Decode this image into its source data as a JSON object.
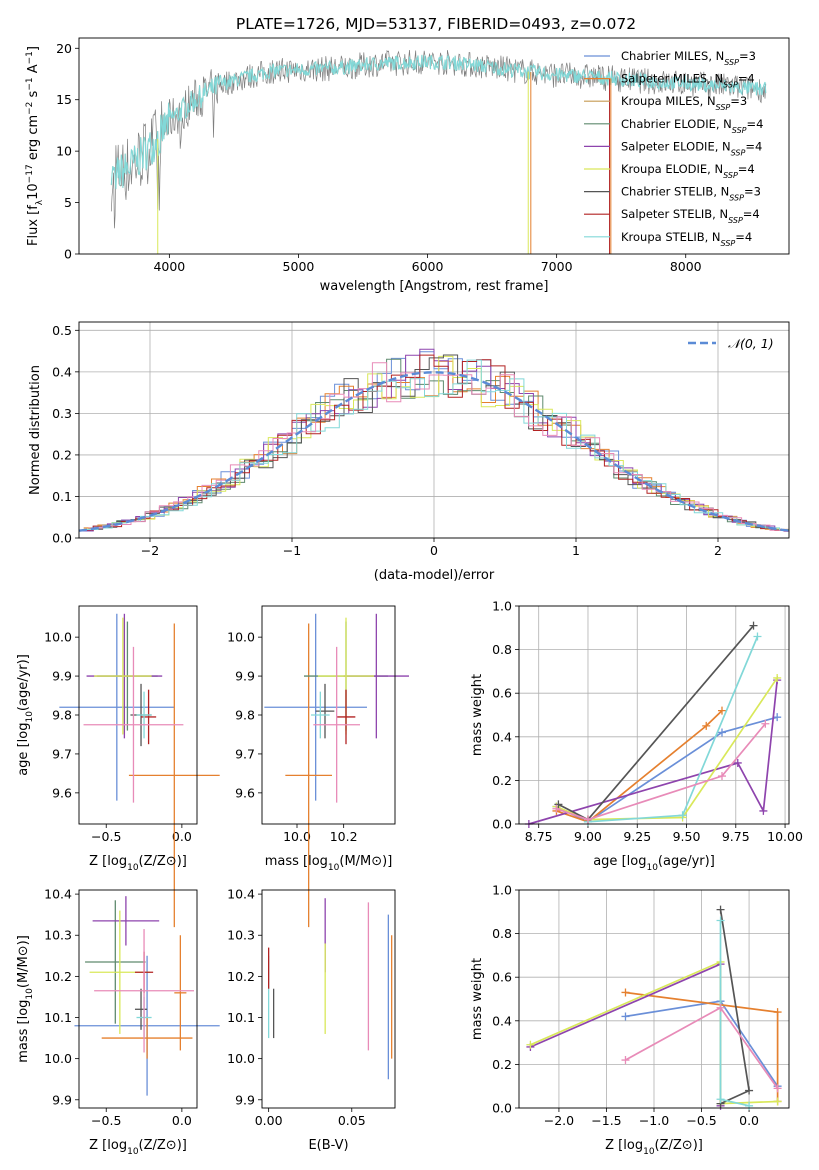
{
  "figure": {
    "title": "PLATE=1726, MJD=53137, FIBERID=0493, z=0.072"
  },
  "series_colors": {
    "chabrier_miles": "#6a8fd8",
    "salpeter_miles": "#e5802f",
    "kroupa_miles": "#c59a52",
    "chabrier_elodie": "#5f8a6e",
    "salpeter_elodie": "#8e44ad",
    "kroupa_elodie": "#d9e85a",
    "chabrier_stelib": "#555555",
    "salpeter_stelib": "#b22222",
    "kroupa_stelib": "#82d8d8",
    "pink": "#e88bb8"
  },
  "chart_data": [
    {
      "type": "line",
      "id": "spectrum",
      "xlabel": "wavelength [Angstrom, rest frame]",
      "ylabel": "Flux [f_λ10^-17 erg cm^-2 s^-1 A^-1]",
      "xlim": [
        3300,
        8800
      ],
      "ylim": [
        0,
        21
      ],
      "xticks": [
        4000,
        5000,
        6000,
        7000,
        8000
      ],
      "yticks": [
        0,
        5,
        10,
        15,
        20
      ],
      "legend": "top-right",
      "legend_entries": [
        {
          "label": "Chabrier MILES, N_SSP=3",
          "color_key": "chabrier_miles"
        },
        {
          "label": "Salpeter MILES, N_SSP=4",
          "color_key": "salpeter_miles"
        },
        {
          "label": "Kroupa MILES, N_SSP=3",
          "color_key": "kroupa_miles"
        },
        {
          "label": "Chabrier ELODIE, N_SSP=4",
          "color_key": "chabrier_elodie"
        },
        {
          "label": "Salpeter ELODIE, N_SSP=4",
          "color_key": "salpeter_elodie"
        },
        {
          "label": "Kroupa ELODIE, N_SSP=4",
          "color_key": "kroupa_elodie"
        },
        {
          "label": "Chabrier STELIB, N_SSP=3",
          "color_key": "chabrier_stelib"
        },
        {
          "label": "Salpeter STELIB, N_SSP=4",
          "color_key": "salpeter_stelib"
        },
        {
          "label": "Kroupa STELIB, N_SSP=4",
          "color_key": "kroupa_stelib"
        }
      ],
      "continuum": {
        "x": [
          3550,
          3700,
          3900,
          4000,
          4200,
          4400,
          4600,
          4800,
          5000,
          5200,
          5400,
          5600,
          5800,
          6000,
          6200,
          6400,
          6600,
          6800,
          7000,
          7200,
          7400,
          7600,
          7800,
          8000,
          8200,
          8400,
          8600
        ],
        "y": [
          7.5,
          8.5,
          11.0,
          13.0,
          15.0,
          16.5,
          17.2,
          17.8,
          17.9,
          18.0,
          18.2,
          18.5,
          18.6,
          18.7,
          18.6,
          18.3,
          18.0,
          17.7,
          17.4,
          17.3,
          17.1,
          16.9,
          16.7,
          16.6,
          16.4,
          16.2,
          16.0
        ]
      },
      "model_cuts": [
        {
          "color_key": "kroupa_elodie",
          "end": 3910
        },
        {
          "color_key": "kroupa_elodie",
          "end": 6780
        },
        {
          "color_key": "salpeter_miles",
          "end": 6800
        },
        {
          "color_key": "salpeter_stelib",
          "end": 7410
        },
        {
          "color_key": "salpeter_miles",
          "end": 7420
        }
      ]
    },
    {
      "type": "line",
      "id": "residuals",
      "xlabel": "(data-model)/error",
      "ylabel": "Normed distribution",
      "xlim": [
        -2.5,
        2.5
      ],
      "ylim": [
        0,
        0.52
      ],
      "xticks": [
        -2,
        -1,
        0,
        1,
        2
      ],
      "yticks": [
        0.0,
        0.1,
        0.2,
        0.3,
        0.4,
        0.5
      ],
      "grid": true,
      "legend": "top-right",
      "legend_entries": [
        {
          "label": "N(0,1)"
        }
      ],
      "gaussian": {
        "mean": 0,
        "sigma": 1
      }
    },
    {
      "type": "scatter",
      "id": "age-vs-Z",
      "xlabel": "Z [log10(Z/Z⊙)]",
      "ylabel": "age [log10(age/yr)]",
      "xlim": [
        -0.68,
        0.1
      ],
      "ylim": [
        9.52,
        10.08
      ],
      "xticks": [
        -0.5,
        0.0
      ],
      "yticks": [
        9.6,
        9.7,
        9.8,
        9.9,
        10.0
      ],
      "points": [
        {
          "x": -0.43,
          "y": 9.82,
          "xerr": 0.38,
          "yerr": 0.24,
          "color_key": "chabrier_miles"
        },
        {
          "x": -0.05,
          "y": 9.645,
          "xerr": 0.3,
          "yerr": 0.39,
          "color_key": "salpeter_miles"
        },
        {
          "x": -0.36,
          "y": 9.9,
          "xerr": 0.2,
          "yerr": 0.14,
          "color_key": "chabrier_elodie"
        },
        {
          "x": -0.38,
          "y": 9.9,
          "xerr": 0.25,
          "yerr": 0.16,
          "color_key": "salpeter_elodie"
        },
        {
          "x": -0.39,
          "y": 9.9,
          "xerr": 0.19,
          "yerr": 0.15,
          "color_key": "kroupa_elodie"
        },
        {
          "x": -0.27,
          "y": 9.8,
          "xerr": 0.07,
          "yerr": 0.08,
          "color_key": "chabrier_stelib"
        },
        {
          "x": -0.22,
          "y": 9.795,
          "xerr": 0.05,
          "yerr": 0.07,
          "color_key": "salpeter_stelib"
        },
        {
          "x": -0.25,
          "y": 9.8,
          "xerr": 0.05,
          "yerr": 0.06,
          "color_key": "kroupa_stelib"
        },
        {
          "x": -0.32,
          "y": 9.775,
          "xerr": 0.33,
          "yerr": 0.2,
          "color_key": "pink"
        }
      ]
    },
    {
      "type": "scatter",
      "id": "age-vs-mass",
      "xlabel": "mass [log10(M/M⊙)]",
      "ylabel": "",
      "xlim": [
        9.85,
        10.42
      ],
      "ylim": [
        9.52,
        10.08
      ],
      "xticks": [
        10.0,
        10.2
      ],
      "yticks": [
        9.6,
        9.7,
        9.8,
        9.9,
        10.0
      ],
      "points": [
        {
          "x": 10.08,
          "y": 9.82,
          "xerr": 0.22,
          "yerr": 0.24,
          "color_key": "chabrier_miles"
        },
        {
          "x": 10.05,
          "y": 9.645,
          "xerr": 0.1,
          "yerr": 0.39,
          "color_key": "salpeter_miles"
        },
        {
          "x": 10.21,
          "y": 9.9,
          "xerr": 0.18,
          "yerr": 0.14,
          "color_key": "chabrier_elodie"
        },
        {
          "x": 10.34,
          "y": 9.9,
          "xerr": 0.14,
          "yerr": 0.16,
          "color_key": "salpeter_elodie"
        },
        {
          "x": 10.21,
          "y": 9.9,
          "xerr": 0.12,
          "yerr": 0.15,
          "color_key": "kroupa_elodie"
        },
        {
          "x": 10.12,
          "y": 9.81,
          "xerr": 0.04,
          "yerr": 0.07,
          "color_key": "chabrier_stelib"
        },
        {
          "x": 10.21,
          "y": 9.795,
          "xerr": 0.04,
          "yerr": 0.07,
          "color_key": "salpeter_stelib"
        },
        {
          "x": 10.1,
          "y": 9.8,
          "xerr": 0.04,
          "yerr": 0.06,
          "color_key": "kroupa_stelib"
        },
        {
          "x": 10.17,
          "y": 9.775,
          "xerr": 0.1,
          "yerr": 0.2,
          "color_key": "pink"
        }
      ]
    },
    {
      "type": "line",
      "id": "mass-weight-vs-age",
      "xlabel": "age [log10(age/yr)]",
      "ylabel": "mass weight",
      "xlim": [
        8.65,
        10.02
      ],
      "ylim": [
        0,
        1.0
      ],
      "xticks": [
        8.75,
        9.0,
        9.25,
        9.5,
        9.75,
        10.0
      ],
      "yticks": [
        0.0,
        0.2,
        0.4,
        0.6,
        0.8,
        1.0
      ],
      "grid": true,
      "series": [
        {
          "color_key": "chabrier_miles",
          "x": [
            8.84,
            9.0,
            9.68,
            9.96
          ],
          "y": [
            0.08,
            0.01,
            0.42,
            0.49
          ]
        },
        {
          "color_key": "salpeter_miles",
          "x": [
            8.84,
            9.0,
            9.6,
            9.68
          ],
          "y": [
            0.06,
            0.01,
            0.45,
            0.52
          ]
        },
        {
          "color_key": "salpeter_elodie",
          "x": [
            8.7,
            9.76,
            9.89,
            9.96
          ],
          "y": [
            0.0,
            0.28,
            0.06,
            0.66
          ]
        },
        {
          "color_key": "kroupa_elodie",
          "x": [
            8.84,
            9.0,
            9.48,
            9.96
          ],
          "y": [
            0.08,
            0.02,
            0.03,
            0.67
          ]
        },
        {
          "color_key": "chabrier_stelib",
          "x": [
            8.85,
            9.0,
            9.84
          ],
          "y": [
            0.09,
            0.02,
            0.91
          ]
        },
        {
          "color_key": "kroupa_stelib",
          "x": [
            9.0,
            9.48,
            9.86
          ],
          "y": [
            0.01,
            0.04,
            0.86
          ]
        },
        {
          "color_key": "pink",
          "x": [
            8.84,
            9.0,
            9.68,
            9.9
          ],
          "y": [
            0.07,
            0.02,
            0.22,
            0.46
          ]
        }
      ]
    },
    {
      "type": "scatter",
      "id": "mass-vs-Z",
      "xlabel": "Z [log10(Z/Z⊙)]",
      "ylabel": "mass [log10(M/M⊙)]",
      "xlim": [
        -0.68,
        0.1
      ],
      "ylim": [
        9.88,
        10.41
      ],
      "xticks": [
        -0.5,
        0.0
      ],
      "yticks": [
        9.9,
        10.0,
        10.1,
        10.2,
        10.3,
        10.4
      ],
      "points": [
        {
          "x": -0.23,
          "y": 10.08,
          "xerr": 0.48,
          "yerr": 0.17,
          "color_key": "chabrier_miles"
        },
        {
          "x": -0.23,
          "y": 10.05,
          "xerr": 0.3,
          "yerr": 0.05,
          "color_key": "salpeter_miles"
        },
        {
          "x": -0.01,
          "y": 10.16,
          "xerr": 0.04,
          "yerr": 0.14,
          "color_key": "salpeter_miles"
        },
        {
          "x": -0.44,
          "y": 10.235,
          "xerr": 0.2,
          "yerr": 0.15,
          "color_key": "chabrier_elodie"
        },
        {
          "x": -0.37,
          "y": 10.335,
          "xerr": 0.22,
          "yerr": 0.06,
          "color_key": "salpeter_elodie"
        },
        {
          "x": -0.41,
          "y": 10.21,
          "xerr": 0.2,
          "yerr": 0.15,
          "color_key": "kroupa_elodie"
        },
        {
          "x": -0.27,
          "y": 10.12,
          "xerr": 0.04,
          "yerr": 0.05,
          "color_key": "chabrier_stelib"
        },
        {
          "x": -0.25,
          "y": 10.21,
          "xerr": 0.06,
          "yerr": 0.05,
          "color_key": "salpeter_stelib"
        },
        {
          "x": -0.25,
          "y": 10.1,
          "xerr": 0.05,
          "yerr": 0.05,
          "color_key": "kroupa_stelib"
        },
        {
          "x": -0.25,
          "y": 10.165,
          "xerr": 0.33,
          "yerr": 0.15,
          "color_key": "pink"
        }
      ]
    },
    {
      "type": "scatter",
      "id": "mass-vs-ebv",
      "xlabel": "E(B-V)",
      "ylabel": "",
      "xlim": [
        -0.004,
        0.076
      ],
      "ylim": [
        9.88,
        10.41
      ],
      "xticks": [
        0.0,
        0.05
      ],
      "yticks": [
        9.9,
        10.0,
        10.1,
        10.2,
        10.3,
        10.4
      ],
      "points": [
        {
          "x": 0.0,
          "y": 10.15,
          "xerr": 0,
          "yerr": 0.1,
          "color_key": "kroupa_stelib"
        },
        {
          "x": 0.0,
          "y": 10.22,
          "xerr": 0,
          "yerr": 0.05,
          "color_key": "salpeter_stelib"
        },
        {
          "x": 0.003,
          "y": 10.11,
          "xerr": 0,
          "yerr": 0.06,
          "color_key": "chabrier_stelib"
        },
        {
          "x": 0.034,
          "y": 10.3,
          "xerr": 0,
          "yerr": 0.09,
          "color_key": "salpeter_elodie"
        },
        {
          "x": 0.034,
          "y": 10.17,
          "xerr": 0,
          "yerr": 0.11,
          "color_key": "kroupa_elodie"
        },
        {
          "x": 0.06,
          "y": 10.2,
          "xerr": 0,
          "yerr": 0.18,
          "color_key": "pink"
        },
        {
          "x": 0.072,
          "y": 10.15,
          "xerr": 0,
          "yerr": 0.2,
          "color_key": "chabrier_miles"
        },
        {
          "x": 0.074,
          "y": 10.15,
          "xerr": 0,
          "yerr": 0.15,
          "color_key": "salpeter_miles"
        }
      ]
    },
    {
      "type": "line",
      "id": "mass-weight-vs-Z",
      "xlabel": "Z [log10(Z/Z⊙)]",
      "ylabel": "mass weight",
      "xlim": [
        -2.42,
        0.42
      ],
      "ylim": [
        0,
        1.0
      ],
      "xticks": [
        -2.0,
        -1.5,
        -1.0,
        -0.5,
        0.0
      ],
      "yticks": [
        0.0,
        0.2,
        0.4,
        0.6,
        0.8,
        1.0
      ],
      "grid": true,
      "series": [
        {
          "color_key": "chabrier_miles",
          "x": [
            -1.3,
            -0.3,
            0.3
          ],
          "y": [
            0.42,
            0.49,
            0.1
          ]
        },
        {
          "color_key": "salpeter_miles",
          "x": [
            -1.3,
            0.3,
            0.3
          ],
          "y": [
            0.53,
            0.44,
            0.03
          ]
        },
        {
          "color_key": "salpeter_elodie",
          "x": [
            -2.3,
            -0.3,
            -0.3
          ],
          "y": [
            0.28,
            0.66,
            0.01
          ]
        },
        {
          "color_key": "kroupa_elodie",
          "x": [
            -2.3,
            -0.3,
            -0.3,
            0.3
          ],
          "y": [
            0.29,
            0.67,
            0.02,
            0.03
          ]
        },
        {
          "color_key": "chabrier_stelib",
          "x": [
            -0.3,
            0.0,
            -0.3
          ],
          "y": [
            0.91,
            0.08,
            0.02
          ]
        },
        {
          "color_key": "kroupa_stelib",
          "x": [
            -0.3,
            -0.3,
            0.0
          ],
          "y": [
            0.86,
            0.04,
            0.01
          ]
        },
        {
          "color_key": "pink",
          "x": [
            -1.3,
            -0.3,
            0.3
          ],
          "y": [
            0.22,
            0.46,
            0.09
          ]
        }
      ]
    }
  ]
}
